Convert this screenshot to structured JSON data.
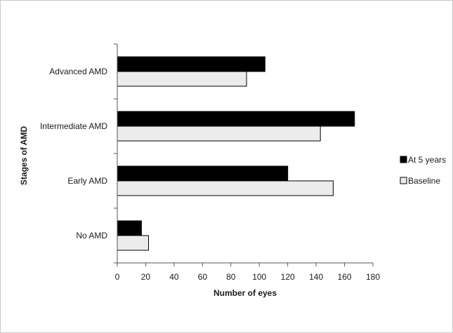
{
  "chart_data": {
    "type": "bar",
    "orientation": "horizontal",
    "categories": [
      "No AMD",
      "Early AMD",
      "Intermediate AMD",
      "Advanced AMD"
    ],
    "series": [
      {
        "name": "At 5 years",
        "values": [
          17,
          120,
          167,
          104
        ],
        "color": "#000000"
      },
      {
        "name": "Baseline",
        "values": [
          22,
          152,
          143,
          91
        ],
        "color": "#ececec"
      }
    ],
    "xlabel": "Number of eyes",
    "ylabel": "Stages of AMD",
    "xlim": [
      0,
      180
    ],
    "xticks": [
      0,
      20,
      40,
      60,
      80,
      100,
      120,
      140,
      160,
      180
    ],
    "grid": false,
    "legend_position": "right"
  }
}
